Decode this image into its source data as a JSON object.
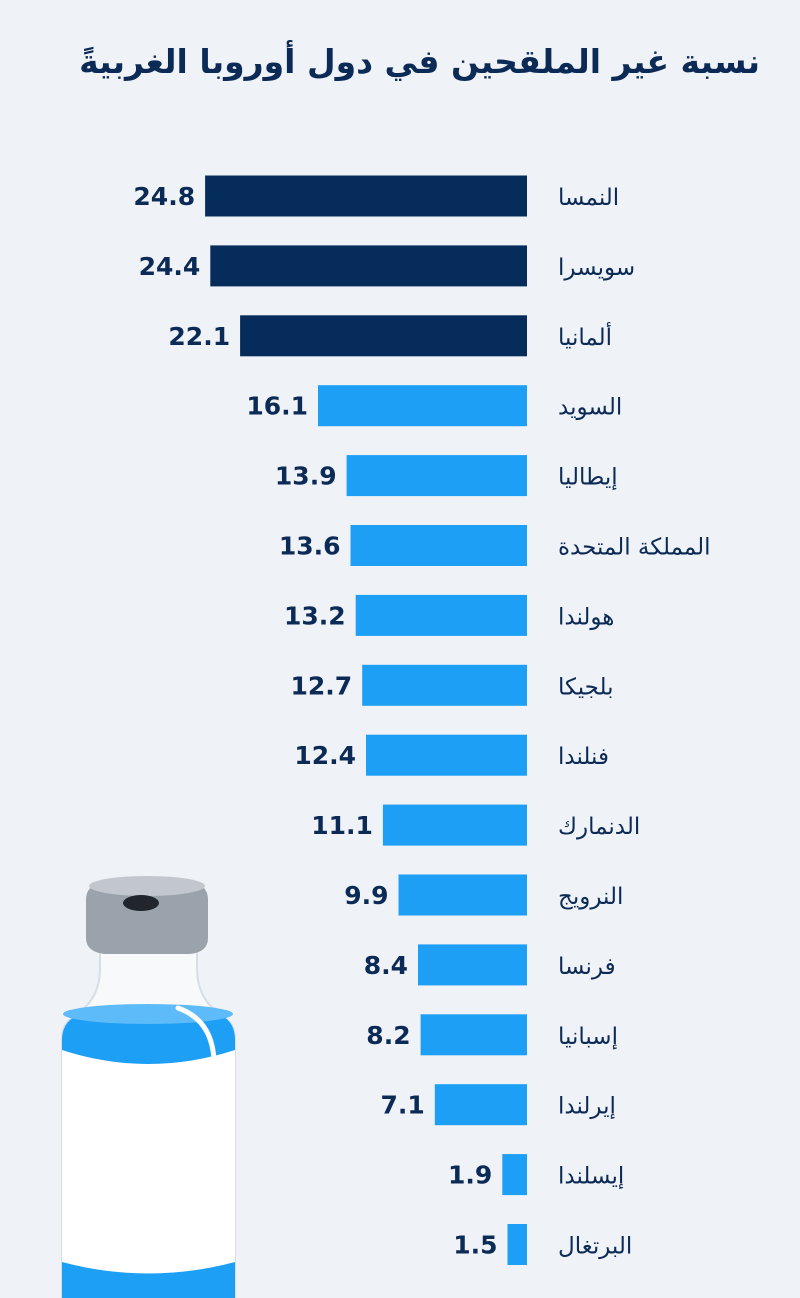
{
  "title": "نسبة غير الملقحين في دول أوروبا الغربيةً",
  "colors": {
    "background": "#eff2f6",
    "highlight_bar": "#052c5a",
    "bar": "#1c9ff5",
    "value_text": "#0b2a55",
    "label_text": "#0b2a55"
  },
  "decoration": {
    "vial_icon": "vaccine-vial-icon"
  },
  "chart_data": {
    "type": "bar",
    "orientation": "horizontal",
    "categories": [
      "النمسا",
      "سويسرا",
      "ألمانيا",
      "السويد",
      "إيطاليا",
      "المملكة المتحدة",
      "هولندا",
      "بلجيكا",
      "فنلندا",
      "الدنمارك",
      "النرويج",
      "فرنسا",
      "إسبانيا",
      "إيرلندا",
      "إيسلندا",
      "البرتغال"
    ],
    "values": [
      24.8,
      24.4,
      22.1,
      16.1,
      13.9,
      13.6,
      13.2,
      12.7,
      12.4,
      11.1,
      9.9,
      8.4,
      8.2,
      7.1,
      1.9,
      1.5
    ],
    "value_labels": [
      "24.8",
      "24.4",
      "22.1",
      "16.1",
      "13.9",
      "13.6",
      "13.2",
      "12.7",
      "12.4",
      "11.1",
      "9.9",
      "8.4",
      "8.2",
      "7.1",
      "1.9",
      "1.5"
    ],
    "highlighted": [
      "النمسا",
      "سويسرا",
      "ألمانيا"
    ],
    "title": "نسبة غير الملقحين في دول أوروبا الغربيةً",
    "xlabel": "",
    "ylabel": "",
    "grid": false,
    "legend": "none"
  }
}
